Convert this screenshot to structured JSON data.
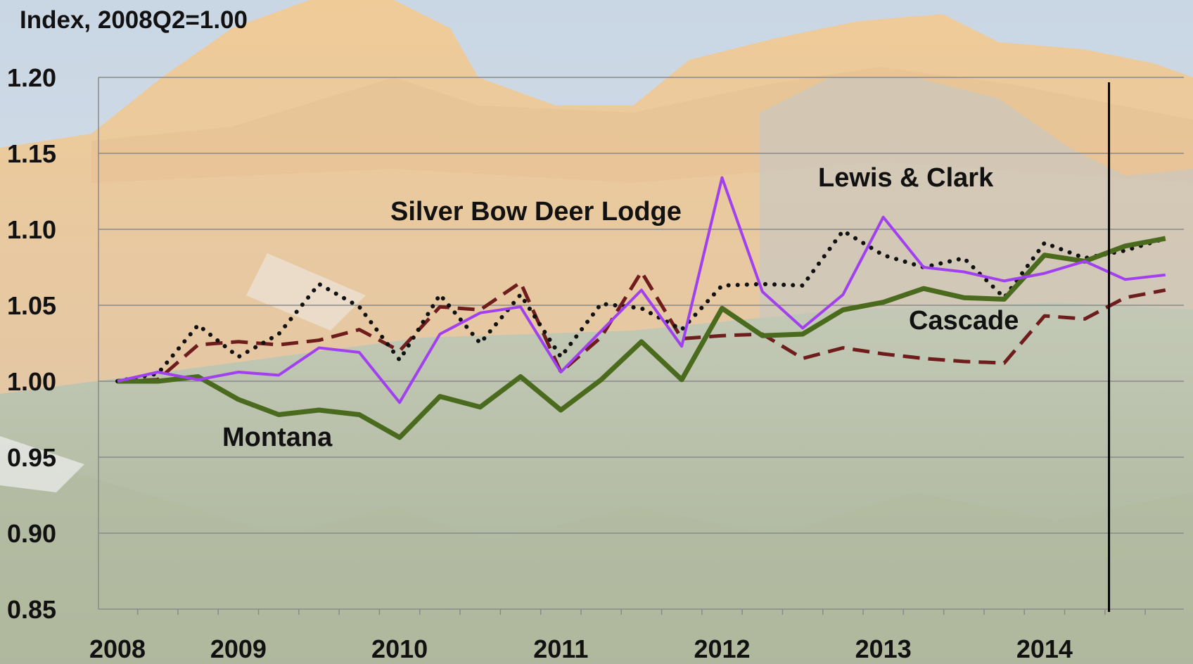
{
  "chart_data": {
    "type": "line",
    "ylabel": "Index, 2008Q2=1.00",
    "ylim": [
      0.85,
      1.2
    ],
    "yticks": [
      "0.85",
      "0.90",
      "0.95",
      "1.00",
      "1.05",
      "1.10",
      "1.15",
      "1.20"
    ],
    "year_labels": [
      "2008",
      "2009",
      "2010",
      "2011",
      "2012",
      "2013",
      "2014"
    ],
    "x_start": "2008Q2",
    "grid": true,
    "marker_line": "2014Q3",
    "series": [
      {
        "name": "Montana",
        "color": "#4a6b1e",
        "dash": "solid",
        "values": [
          1.0,
          1.0,
          1.003,
          0.988,
          0.978,
          0.981,
          0.978,
          0.963,
          0.99,
          0.983,
          1.003,
          0.981,
          1.001,
          1.026,
          1.001,
          1.048,
          1.03,
          1.031,
          1.047,
          1.052,
          1.061,
          1.055,
          1.054,
          1.083,
          1.079,
          1.089,
          1.094
        ]
      },
      {
        "name": "Silver Bow Deer Lodge",
        "color": "#a040ef",
        "dash": "solid",
        "values": [
          1.0,
          1.006,
          1.001,
          1.006,
          1.004,
          1.022,
          1.019,
          0.986,
          1.031,
          1.045,
          1.049,
          1.006,
          1.033,
          1.06,
          1.023,
          1.134,
          1.059,
          1.035,
          1.057,
          1.108,
          1.075,
          1.072,
          1.066,
          1.071,
          1.079,
          1.067,
          1.07
        ]
      },
      {
        "name": "Lewis & Clark",
        "color": "#111111",
        "dash": "dotted",
        "values": [
          1.0,
          1.005,
          1.037,
          1.016,
          1.031,
          1.064,
          1.049,
          1.014,
          1.057,
          1.025,
          1.057,
          1.016,
          1.051,
          1.048,
          1.034,
          1.063,
          1.064,
          1.063,
          1.099,
          1.083,
          1.075,
          1.081,
          1.055,
          1.091,
          1.081,
          1.086,
          1.094
        ]
      },
      {
        "name": "Cascade",
        "color": "#6e1c1c",
        "dash": "dashed",
        "values": [
          1.0,
          1.001,
          1.024,
          1.026,
          1.024,
          1.027,
          1.034,
          1.02,
          1.049,
          1.047,
          1.065,
          1.006,
          1.029,
          1.072,
          1.028,
          1.03,
          1.031,
          1.015,
          1.022,
          1.018,
          1.015,
          1.013,
          1.012,
          1.043,
          1.041,
          1.055,
          1.06
        ]
      }
    ]
  }
}
